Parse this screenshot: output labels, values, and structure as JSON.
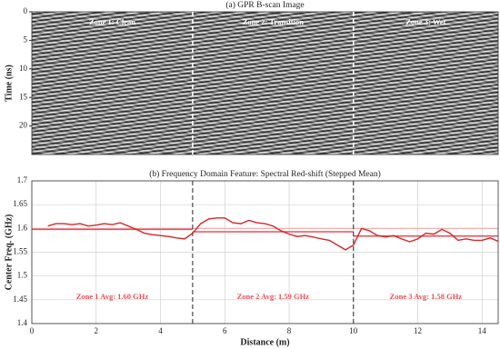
{
  "chart_data": [
    {
      "type": "image",
      "title": "(a) GPR B-scan Image",
      "ylabel": "Time (ns)",
      "xlim": [
        0,
        14.5
      ],
      "ylim": [
        0,
        25
      ],
      "yticks": [
        0,
        5,
        10,
        15,
        20
      ],
      "boundaries": [
        5,
        10
      ],
      "zone_labels": [
        "Zone 1: Clean",
        "Zone 2: Transition",
        "Zone 3: Wet"
      ]
    },
    {
      "type": "line",
      "title": "(b) Frequency Domain Feature: Spectral Red-shift (Stepped Mean)",
      "xlabel": "Distance (m)",
      "ylabel": "Center Freq. (GHz)",
      "xlim": [
        0,
        14.5
      ],
      "xticks": [
        0,
        2,
        4,
        6,
        8,
        10,
        12,
        14
      ],
      "ylim": [
        1.4,
        1.7
      ],
      "yticks": [
        1.4,
        1.45,
        1.5,
        1.55,
        1.6,
        1.65,
        1.7
      ],
      "grid": true,
      "x": [
        0.5,
        0.75,
        1,
        1.25,
        1.5,
        1.75,
        2,
        2.25,
        2.5,
        2.75,
        3,
        3.25,
        3.5,
        3.75,
        4,
        4.25,
        4.5,
        4.75,
        5,
        5.25,
        5.5,
        5.75,
        6,
        6.25,
        6.5,
        6.75,
        7,
        7.25,
        7.5,
        7.75,
        8,
        8.25,
        8.5,
        8.75,
        9,
        9.25,
        9.5,
        9.75,
        10,
        10.25,
        10.5,
        10.75,
        11,
        11.25,
        11.5,
        11.75,
        12,
        12.25,
        12.5,
        12.75,
        13,
        13.25,
        13.5,
        13.75,
        14,
        14.25,
        14.5
      ],
      "series": [
        {
          "color": "#d62728",
          "values": [
            1.605,
            1.61,
            1.61,
            1.608,
            1.61,
            1.605,
            1.607,
            1.61,
            1.608,
            1.612,
            1.605,
            1.598,
            1.59,
            1.587,
            1.585,
            1.583,
            1.58,
            1.578,
            1.59,
            1.61,
            1.62,
            1.622,
            1.622,
            1.612,
            1.61,
            1.617,
            1.612,
            1.61,
            1.605,
            1.595,
            1.588,
            1.583,
            1.585,
            1.582,
            1.578,
            1.575,
            1.565,
            1.555,
            1.565,
            1.6,
            1.595,
            1.585,
            1.582,
            1.585,
            1.578,
            1.572,
            1.578,
            1.59,
            1.588,
            1.598,
            1.59,
            1.575,
            1.578,
            1.575,
            1.575,
            1.58,
            1.573
          ]
        }
      ],
      "reference_line": 1.6,
      "boundaries": [
        5,
        10
      ],
      "zone_means": [
        1.598,
        1.593,
        1.584
      ],
      "zone_mean_color": "#e8505b",
      "zone_labels": [
        "Zone 1 Avg: 1.60 GHz",
        "Zone 2 Avg: 1.59 GHz",
        "Zone 3 Avg: 1.58 GHz"
      ]
    }
  ]
}
